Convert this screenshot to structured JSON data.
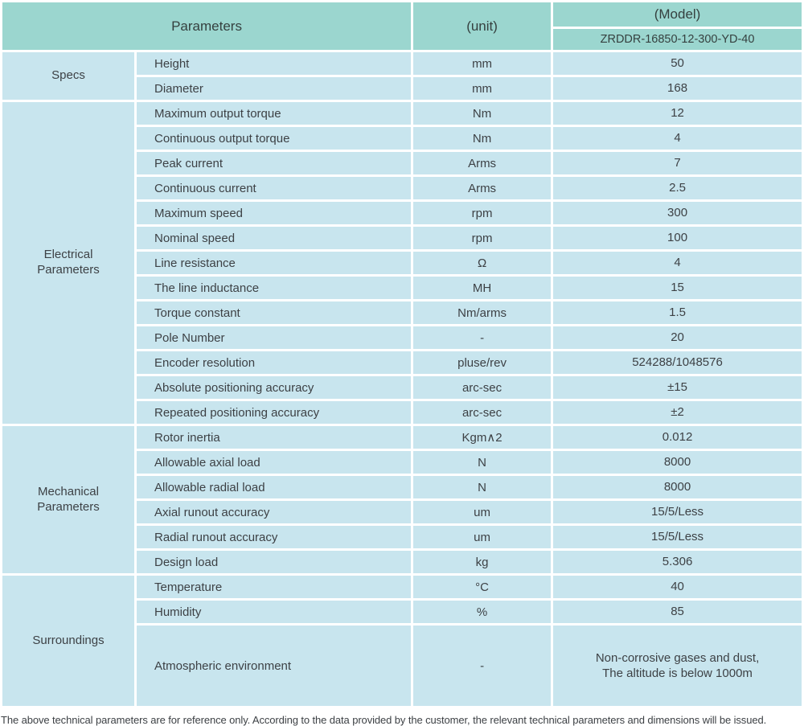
{
  "header": {
    "parameters_label": "Parameters",
    "unit_label": "(unit)",
    "model_label": "(Model)",
    "model_value": "ZRDDR-16850-12-300-YD-40"
  },
  "sections": [
    {
      "category": "Specs",
      "rows": [
        {
          "parameter": "Height",
          "unit": "mm",
          "value": "50"
        },
        {
          "parameter": "Diameter",
          "unit": "mm",
          "value": "168"
        }
      ]
    },
    {
      "category": "Electrical Parameters",
      "rows": [
        {
          "parameter": "Maximum output torque",
          "unit": "Nm",
          "value": "12"
        },
        {
          "parameter": "Continuous output torque",
          "unit": "Nm",
          "value": "4"
        },
        {
          "parameter": "Peak current",
          "unit": "Arms",
          "value": "7"
        },
        {
          "parameter": "Continuous current",
          "unit": "Arms",
          "value": "2.5"
        },
        {
          "parameter": "Maximum speed",
          "unit": "rpm",
          "value": "300"
        },
        {
          "parameter": "Nominal speed",
          "unit": "rpm",
          "value": "100"
        },
        {
          "parameter": "Line resistance",
          "unit": "Ω",
          "value": "4"
        },
        {
          "parameter": "The line inductance",
          "unit": "MH",
          "value": "15"
        },
        {
          "parameter": "Torque constant",
          "unit": "Nm/arms",
          "value": "1.5"
        },
        {
          "parameter": "Pole Number",
          "unit": "-",
          "value": "20"
        },
        {
          "parameter": "Encoder resolution",
          "unit": "pluse/rev",
          "value": "524288/1048576"
        },
        {
          "parameter": "Absolute positioning accuracy",
          "unit": "arc-sec",
          "value": "±15"
        },
        {
          "parameter": "Repeated positioning accuracy",
          "unit": "arc-sec",
          "value": "±2"
        }
      ]
    },
    {
      "category": "Mechanical Parameters",
      "rows": [
        {
          "parameter": "Rotor inertia",
          "unit": "Kgm∧2",
          "value": "0.012"
        },
        {
          "parameter": "Allowable axial load",
          "unit": "N",
          "value": "8000"
        },
        {
          "parameter": "Allowable radial load",
          "unit": "N",
          "value": "8000"
        },
        {
          "parameter": "Axial runout accuracy",
          "unit": "um",
          "value": "15/5/Less"
        },
        {
          "parameter": "Radial runout accuracy",
          "unit": "um",
          "value": "15/5/Less"
        },
        {
          "parameter": "Design load",
          "unit": "kg",
          "value": "5.306"
        }
      ]
    },
    {
      "category": "Surroundings",
      "rows": [
        {
          "parameter": "Temperature",
          "unit": "°C",
          "value": "40"
        },
        {
          "parameter": "Humidity",
          "unit": "%",
          "value": "85"
        },
        {
          "parameter": "Atmospheric environment",
          "unit": "-",
          "value": [
            "Non-corrosive gases and dust,",
            "The altitude is below 1000m"
          ]
        }
      ]
    }
  ],
  "footer": {
    "note": "The above technical parameters are for reference only. According to the data provided by the customer, the relevant technical parameters and dimensions will be issued."
  },
  "colors": {
    "header_bg": "#9bd6cf",
    "row_bg": "#c8e5ee",
    "text": "#3d4145",
    "border": "#ffffff"
  }
}
